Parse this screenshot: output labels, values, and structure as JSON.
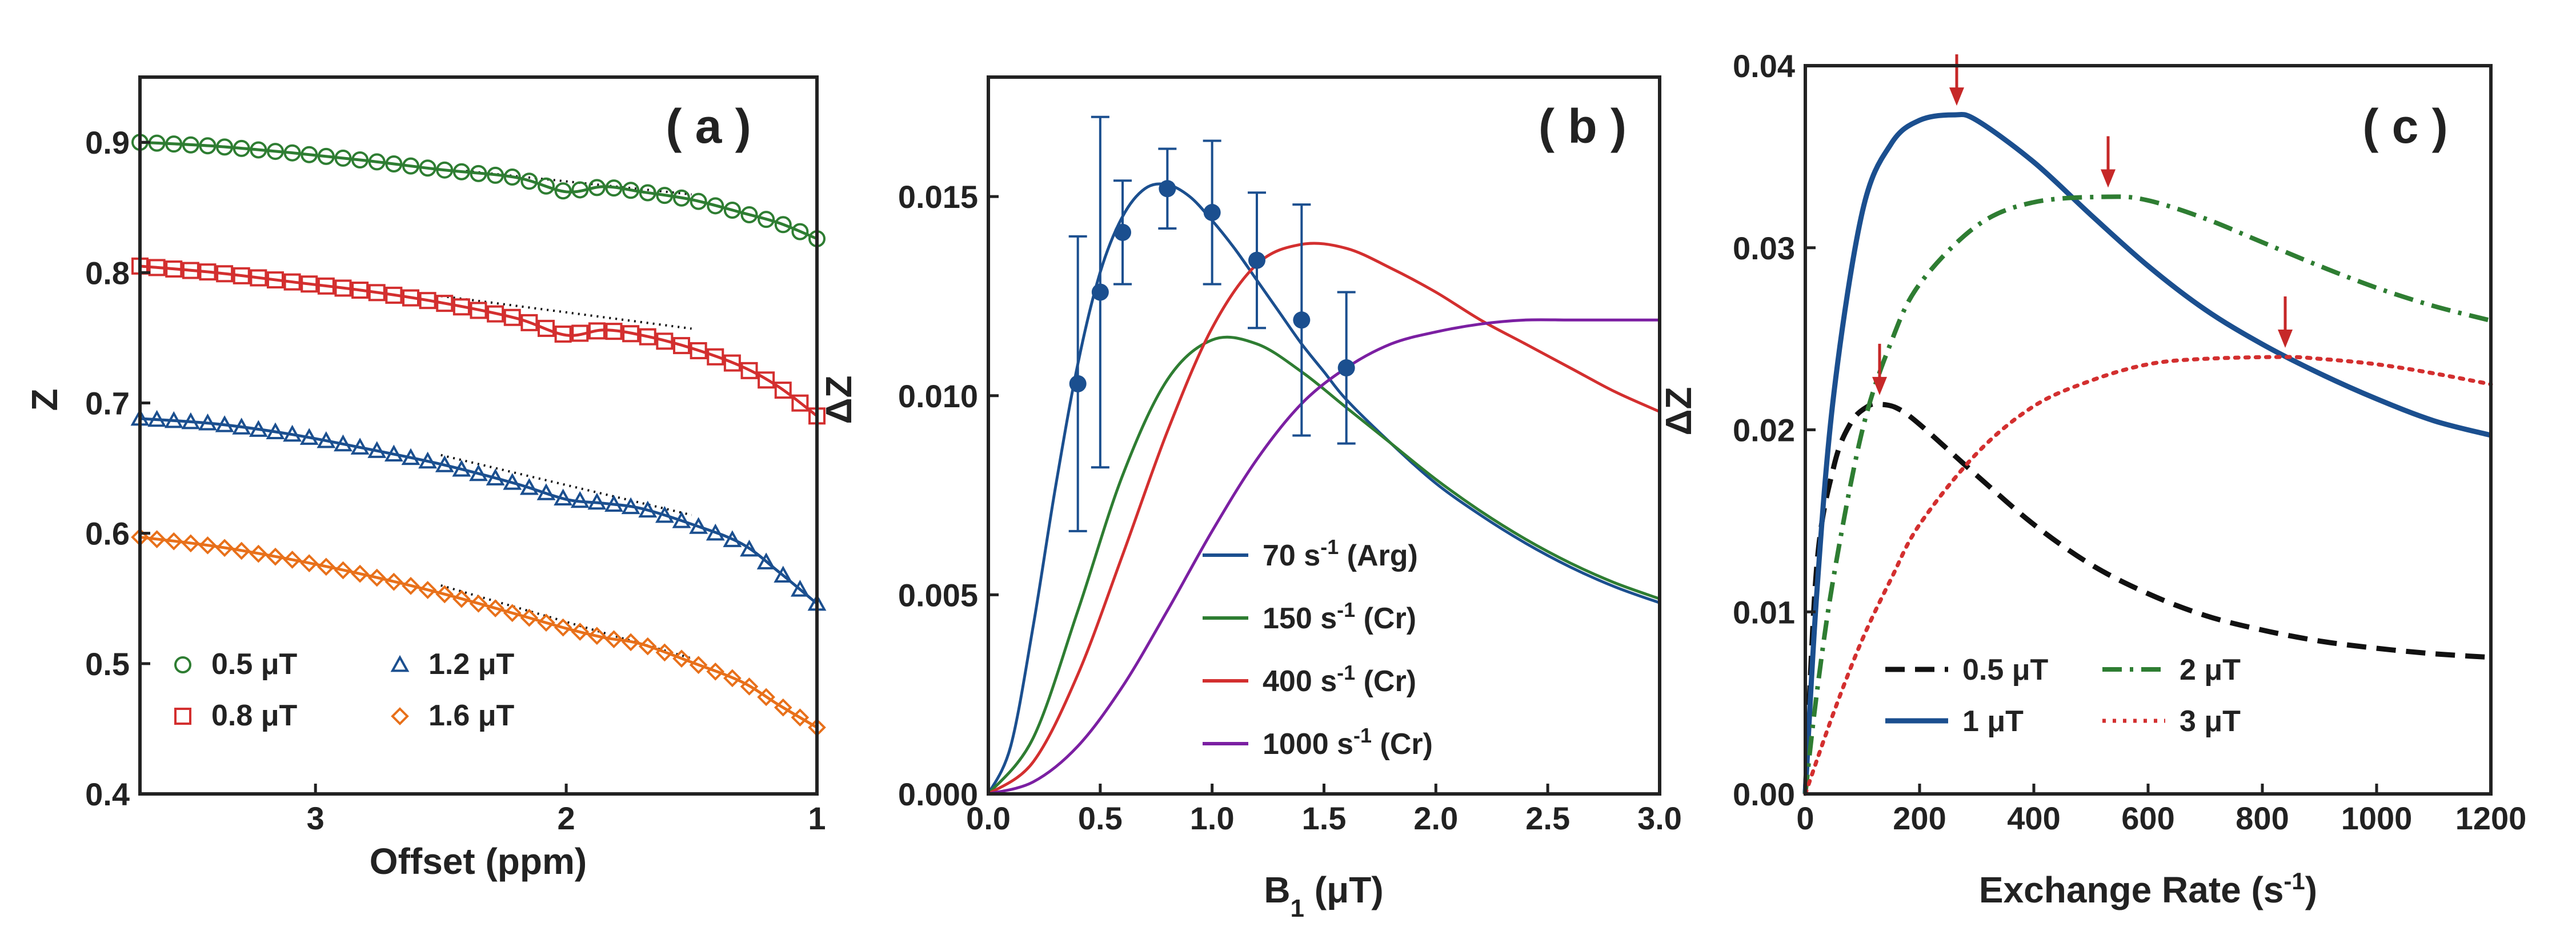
{
  "colors": {
    "green": "#2e7d32",
    "red": "#d32f2f",
    "blue": "#1b4f8f",
    "orange": "#e8701a",
    "purple": "#7b1fa2",
    "black": "#111111",
    "arrow": "#c62828"
  },
  "chart_data": [
    {
      "type": "scatter",
      "panel": "( a )",
      "xlabel": "Offset (ppm)",
      "ylabel": "Z",
      "xlim": [
        3.7,
        1.0
      ],
      "ylim": [
        0.4,
        0.95
      ],
      "xticks": [
        3,
        2,
        1
      ],
      "yticks": [
        0.4,
        0.5,
        0.6,
        0.7,
        0.8,
        0.9
      ],
      "ytick_labels": [
        "0.4",
        "0.5",
        "0.6",
        "0.7",
        "0.8",
        "0.9"
      ],
      "series": [
        {
          "name": "0.5 μT",
          "color": "green",
          "marker": "circle",
          "fit": [
            [
              3.7,
              0.9
            ],
            [
              3.4,
              0.897
            ],
            [
              3.1,
              0.892
            ],
            [
              2.8,
              0.886
            ],
            [
              2.5,
              0.879
            ],
            [
              2.2,
              0.873
            ],
            [
              2.0,
              0.862
            ],
            [
              1.85,
              0.866
            ],
            [
              1.7,
              0.862
            ],
            [
              1.5,
              0.856
            ],
            [
              1.3,
              0.846
            ],
            [
              1.15,
              0.838
            ],
            [
              1.0,
              0.826
            ]
          ],
          "baseline": [
            [
              2.4,
              0.878
            ],
            [
              1.5,
              0.86
            ]
          ]
        },
        {
          "name": "0.8 μT",
          "color": "red",
          "marker": "square",
          "fit": [
            [
              3.7,
              0.805
            ],
            [
              3.4,
              0.8
            ],
            [
              3.1,
              0.793
            ],
            [
              2.8,
              0.786
            ],
            [
              2.5,
              0.777
            ],
            [
              2.2,
              0.765
            ],
            [
              2.0,
              0.752
            ],
            [
              1.85,
              0.756
            ],
            [
              1.7,
              0.752
            ],
            [
              1.5,
              0.742
            ],
            [
              1.3,
              0.728
            ],
            [
              1.15,
              0.712
            ],
            [
              1.0,
              0.69
            ]
          ],
          "baseline": [
            [
              2.5,
              0.782
            ],
            [
              1.5,
              0.757
            ]
          ]
        },
        {
          "name": "1.2 μT",
          "color": "blue",
          "marker": "triangle",
          "fit": [
            [
              3.7,
              0.688
            ],
            [
              3.4,
              0.684
            ],
            [
              3.1,
              0.676
            ],
            [
              2.8,
              0.665
            ],
            [
              2.5,
              0.653
            ],
            [
              2.2,
              0.638
            ],
            [
              2.0,
              0.626
            ],
            [
              1.85,
              0.623
            ],
            [
              1.7,
              0.619
            ],
            [
              1.5,
              0.607
            ],
            [
              1.3,
              0.592
            ],
            [
              1.15,
              0.57
            ],
            [
              1.0,
              0.546
            ]
          ],
          "baseline": [
            [
              2.5,
              0.66
            ],
            [
              1.5,
              0.614
            ]
          ]
        },
        {
          "name": "1.6 μT",
          "color": "orange",
          "marker": "diamond",
          "fit": [
            [
              3.7,
              0.597
            ],
            [
              3.4,
              0.59
            ],
            [
              3.1,
              0.58
            ],
            [
              2.8,
              0.568
            ],
            [
              2.5,
              0.554
            ],
            [
              2.2,
              0.538
            ],
            [
              2.0,
              0.527
            ],
            [
              1.85,
              0.52
            ],
            [
              1.7,
              0.515
            ],
            [
              1.5,
              0.501
            ],
            [
              1.3,
              0.486
            ],
            [
              1.15,
              0.468
            ],
            [
              1.0,
              0.451
            ]
          ],
          "baseline": [
            [
              2.5,
              0.56
            ],
            [
              1.5,
              0.504
            ]
          ]
        }
      ],
      "legend": [
        "0.5 μT",
        "0.8 μT",
        "1.2 μT",
        "1.6 μT"
      ]
    },
    {
      "type": "line",
      "panel": "( b )",
      "xlabel": "B₁ (μT)",
      "ylabel": "ΔZ",
      "xlim": [
        0.0,
        3.0
      ],
      "ylim": [
        0.0,
        0.018
      ],
      "xticks": [
        0.0,
        0.5,
        1.0,
        1.5,
        2.0,
        2.5,
        3.0
      ],
      "xtick_labels": [
        "0.0",
        "0.5",
        "1.0",
        "1.5",
        "2.0",
        "2.5",
        "3.0"
      ],
      "yticks": [
        0.0,
        0.005,
        0.01,
        0.015
      ],
      "ytick_labels": [
        "0.000",
        "0.005",
        "0.010",
        "0.015"
      ],
      "series": [
        {
          "name": "70 s-1 (Arg)",
          "label_main": "70 s",
          "label_sup": "-1",
          "label_tail": " (Arg)",
          "color": "blue",
          "x": [
            0.0,
            0.1,
            0.2,
            0.3,
            0.4,
            0.5,
            0.6,
            0.7,
            0.8,
            0.9,
            1.0,
            1.1,
            1.2,
            1.3,
            1.4,
            1.5,
            1.6,
            1.8,
            2.0,
            2.2,
            2.4,
            2.6,
            2.8,
            3.0
          ],
          "y": [
            0.0,
            0.0012,
            0.0042,
            0.0077,
            0.0108,
            0.0131,
            0.0145,
            0.0152,
            0.0153,
            0.015,
            0.0144,
            0.0137,
            0.0129,
            0.0121,
            0.0113,
            0.0106,
            0.0099,
            0.0088,
            0.0078,
            0.007,
            0.0063,
            0.0057,
            0.0052,
            0.0048
          ]
        },
        {
          "name": "150 s-1 (Cr)",
          "label_main": "150 s",
          "label_sup": "-1",
          "label_tail": " (Cr)",
          "color": "green",
          "x": [
            0.0,
            0.2,
            0.4,
            0.6,
            0.8,
            1.0,
            1.2,
            1.4,
            1.6,
            1.8,
            2.0,
            2.2,
            2.4,
            2.6,
            2.8,
            3.0
          ],
          "y": [
            0.0,
            0.0014,
            0.0046,
            0.008,
            0.0104,
            0.0114,
            0.0113,
            0.0106,
            0.0097,
            0.0088,
            0.0079,
            0.0071,
            0.0064,
            0.0058,
            0.0053,
            0.0049
          ]
        },
        {
          "name": "400 s-1 (Cr)",
          "label_main": "400 s",
          "label_sup": "-1",
          "label_tail": " (Cr)",
          "color": "red",
          "x": [
            0.0,
            0.2,
            0.4,
            0.6,
            0.8,
            1.0,
            1.2,
            1.4,
            1.6,
            1.8,
            2.0,
            2.2,
            2.4,
            2.6,
            2.8,
            3.0
          ],
          "y": [
            0.0,
            0.0008,
            0.003,
            0.006,
            0.0091,
            0.0117,
            0.0133,
            0.0138,
            0.0137,
            0.0132,
            0.0126,
            0.0119,
            0.0113,
            0.0107,
            0.0101,
            0.0096
          ]
        },
        {
          "name": "1000 s-1 (Cr)",
          "label_main": "1000 s",
          "label_sup": "-1",
          "label_tail": " (Cr)",
          "color": "purple",
          "x": [
            0.0,
            0.2,
            0.4,
            0.6,
            0.8,
            1.0,
            1.2,
            1.4,
            1.6,
            1.8,
            2.0,
            2.2,
            2.4,
            2.6,
            2.8,
            3.0
          ],
          "y": [
            0.0,
            0.0003,
            0.0012,
            0.0027,
            0.0046,
            0.0066,
            0.0084,
            0.0098,
            0.0107,
            0.0113,
            0.0116,
            0.0118,
            0.0119,
            0.0119,
            0.0119,
            0.0119
          ]
        }
      ],
      "measured": {
        "color": "blue",
        "x": [
          0.4,
          0.5,
          0.6,
          0.8,
          1.0,
          1.2,
          1.4,
          1.6
        ],
        "y": [
          0.0103,
          0.0126,
          0.0141,
          0.0152,
          0.0146,
          0.0134,
          0.0119,
          0.0107
        ],
        "err": [
          0.0037,
          0.0044,
          0.0013,
          0.001,
          0.0018,
          0.0017,
          0.0029,
          0.0019
        ]
      }
    },
    {
      "type": "line",
      "panel": "( c )",
      "xlabel": "Exchange Rate (s-1)",
      "ylabel": "ΔZ",
      "xlim": [
        0,
        1200
      ],
      "ylim": [
        0.0,
        0.04
      ],
      "xticks": [
        0,
        200,
        400,
        600,
        800,
        1000,
        1200
      ],
      "xtick_labels": [
        "0",
        "200",
        "400",
        "600",
        "800",
        "1000",
        "1200"
      ],
      "yticks": [
        0.0,
        0.01,
        0.02,
        0.03,
        0.04
      ],
      "ytick_labels": [
        "0.00",
        "0.01",
        "0.02",
        "0.03",
        "0.04"
      ],
      "series": [
        {
          "name": "0.5 μT",
          "color": "black",
          "dash": "dashed",
          "x": [
            0,
            20,
            50,
            80,
            110,
            130,
            160,
            200,
            300,
            400,
            500,
            600,
            700,
            800,
            900,
            1000,
            1100,
            1200
          ],
          "y": [
            0.0,
            0.0125,
            0.018,
            0.0204,
            0.0213,
            0.0214,
            0.0212,
            0.0203,
            0.0175,
            0.0148,
            0.0126,
            0.011,
            0.0098,
            0.009,
            0.0084,
            0.008,
            0.0077,
            0.0075
          ]
        },
        {
          "name": "1 μT",
          "color": "blue",
          "dash": "solid",
          "x": [
            0,
            20,
            50,
            100,
            150,
            200,
            260,
            300,
            400,
            500,
            600,
            700,
            800,
            900,
            1000,
            1100,
            1200
          ],
          "y": [
            0.0,
            0.011,
            0.022,
            0.032,
            0.0357,
            0.037,
            0.0373,
            0.037,
            0.0347,
            0.0318,
            0.029,
            0.0266,
            0.0247,
            0.0231,
            0.0217,
            0.0205,
            0.0197
          ]
        },
        {
          "name": "2 μT",
          "color": "green",
          "dash": "dashdot",
          "x": [
            0,
            20,
            50,
            100,
            150,
            200,
            300,
            400,
            530,
            600,
            700,
            800,
            900,
            1000,
            1100,
            1200
          ],
          "y": [
            0.0,
            0.0055,
            0.012,
            0.02,
            0.0248,
            0.028,
            0.0312,
            0.0325,
            0.0328,
            0.0326,
            0.0316,
            0.0303,
            0.029,
            0.0278,
            0.0268,
            0.026
          ]
        },
        {
          "name": "3 μT",
          "color": "red",
          "dash": "dotted",
          "x": [
            0,
            50,
            100,
            150,
            200,
            300,
            400,
            500,
            600,
            700,
            840,
            900,
            1000,
            1100,
            1200
          ],
          "y": [
            0.0,
            0.0045,
            0.0085,
            0.0118,
            0.0148,
            0.0187,
            0.0213,
            0.0227,
            0.0236,
            0.0239,
            0.024,
            0.0239,
            0.0236,
            0.0231,
            0.0225
          ]
        }
      ],
      "peak_arrows": [
        {
          "x": 130,
          "y": 0.0214
        },
        {
          "x": 265,
          "y": 0.0373
        },
        {
          "x": 530,
          "y": 0.0328
        },
        {
          "x": 840,
          "y": 0.024
        }
      ]
    }
  ]
}
